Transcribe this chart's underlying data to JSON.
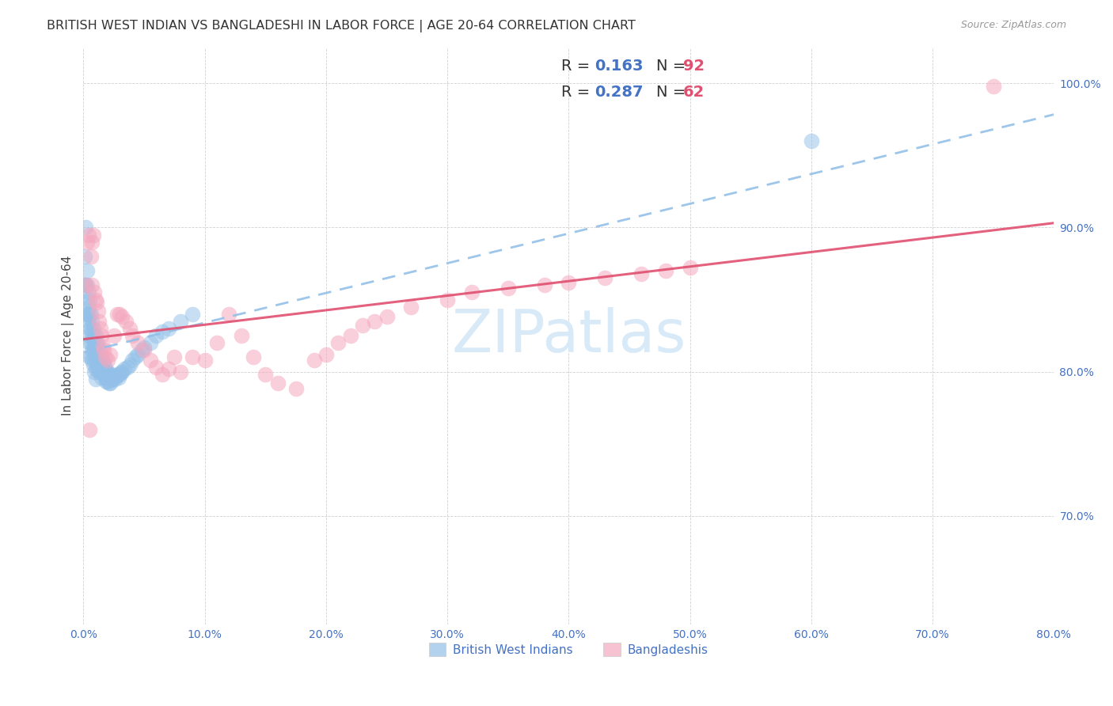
{
  "title": "BRITISH WEST INDIAN VS BANGLADESHI IN LABOR FORCE | AGE 20-64 CORRELATION CHART",
  "source": "Source: ZipAtlas.com",
  "ylabel": "In Labor Force | Age 20-64",
  "xlim": [
    0.0,
    0.8
  ],
  "ylim": [
    0.625,
    1.025
  ],
  "xticks": [
    0.0,
    0.1,
    0.2,
    0.3,
    0.4,
    0.5,
    0.6,
    0.7,
    0.8
  ],
  "yticks": [
    0.7,
    0.8,
    0.9,
    1.0
  ],
  "xticklabels": [
    "0.0%",
    "10.0%",
    "20.0%",
    "30.0%",
    "40.0%",
    "50.0%",
    "60.0%",
    "70.0%",
    "80.0%"
  ],
  "yticklabels": [
    "70.0%",
    "80.0%",
    "90.0%",
    "100.0%"
  ],
  "blue_color": "#92C0E8",
  "pink_color": "#F4A8BF",
  "trend_blue_color": "#92C0E8",
  "trend_pink_color": "#E05070",
  "watermark_color": "#D8EAF8",
  "blue_scatter_x": [
    0.001,
    0.001,
    0.002,
    0.002,
    0.002,
    0.003,
    0.003,
    0.003,
    0.003,
    0.004,
    0.004,
    0.004,
    0.004,
    0.005,
    0.005,
    0.005,
    0.005,
    0.005,
    0.006,
    0.006,
    0.006,
    0.006,
    0.007,
    0.007,
    0.007,
    0.007,
    0.008,
    0.008,
    0.008,
    0.008,
    0.009,
    0.009,
    0.009,
    0.009,
    0.01,
    0.01,
    0.01,
    0.01,
    0.01,
    0.011,
    0.011,
    0.011,
    0.012,
    0.012,
    0.012,
    0.013,
    0.013,
    0.013,
    0.014,
    0.014,
    0.015,
    0.015,
    0.015,
    0.016,
    0.016,
    0.017,
    0.017,
    0.018,
    0.018,
    0.019,
    0.019,
    0.02,
    0.02,
    0.021,
    0.021,
    0.022,
    0.022,
    0.023,
    0.024,
    0.025,
    0.026,
    0.027,
    0.028,
    0.029,
    0.03,
    0.031,
    0.032,
    0.034,
    0.036,
    0.038,
    0.04,
    0.043,
    0.045,
    0.048,
    0.05,
    0.055,
    0.06,
    0.065,
    0.07,
    0.08,
    0.09,
    0.6
  ],
  "blue_scatter_y": [
    0.88,
    0.86,
    0.9,
    0.86,
    0.84,
    0.87,
    0.86,
    0.85,
    0.84,
    0.855,
    0.845,
    0.835,
    0.825,
    0.85,
    0.84,
    0.83,
    0.82,
    0.81,
    0.84,
    0.83,
    0.82,
    0.81,
    0.835,
    0.825,
    0.815,
    0.808,
    0.83,
    0.822,
    0.815,
    0.805,
    0.825,
    0.818,
    0.81,
    0.8,
    0.825,
    0.818,
    0.81,
    0.802,
    0.795,
    0.82,
    0.812,
    0.805,
    0.818,
    0.81,
    0.802,
    0.815,
    0.808,
    0.8,
    0.812,
    0.805,
    0.81,
    0.803,
    0.796,
    0.808,
    0.8,
    0.806,
    0.798,
    0.803,
    0.796,
    0.8,
    0.793,
    0.8,
    0.793,
    0.798,
    0.792,
    0.798,
    0.792,
    0.795,
    0.795,
    0.797,
    0.795,
    0.797,
    0.798,
    0.796,
    0.798,
    0.8,
    0.8,
    0.802,
    0.803,
    0.805,
    0.808,
    0.81,
    0.812,
    0.815,
    0.817,
    0.82,
    0.825,
    0.828,
    0.83,
    0.835,
    0.84,
    0.96
  ],
  "pink_scatter_x": [
    0.002,
    0.003,
    0.004,
    0.005,
    0.006,
    0.007,
    0.007,
    0.008,
    0.009,
    0.01,
    0.011,
    0.012,
    0.013,
    0.014,
    0.015,
    0.016,
    0.017,
    0.018,
    0.02,
    0.022,
    0.025,
    0.028,
    0.03,
    0.032,
    0.035,
    0.038,
    0.04,
    0.045,
    0.05,
    0.055,
    0.06,
    0.065,
    0.07,
    0.075,
    0.08,
    0.09,
    0.1,
    0.11,
    0.12,
    0.13,
    0.14,
    0.15,
    0.16,
    0.175,
    0.19,
    0.2,
    0.21,
    0.22,
    0.23,
    0.24,
    0.25,
    0.27,
    0.3,
    0.32,
    0.35,
    0.38,
    0.4,
    0.43,
    0.46,
    0.48,
    0.5,
    0.75
  ],
  "pink_scatter_y": [
    0.86,
    0.89,
    0.895,
    0.76,
    0.88,
    0.89,
    0.86,
    0.895,
    0.855,
    0.85,
    0.848,
    0.842,
    0.835,
    0.83,
    0.825,
    0.818,
    0.815,
    0.81,
    0.808,
    0.812,
    0.825,
    0.84,
    0.84,
    0.838,
    0.835,
    0.83,
    0.825,
    0.82,
    0.815,
    0.808,
    0.803,
    0.798,
    0.802,
    0.81,
    0.8,
    0.81,
    0.808,
    0.82,
    0.84,
    0.825,
    0.81,
    0.798,
    0.792,
    0.788,
    0.808,
    0.812,
    0.82,
    0.825,
    0.832,
    0.835,
    0.838,
    0.845,
    0.85,
    0.855,
    0.858,
    0.86,
    0.862,
    0.865,
    0.868,
    0.87,
    0.872,
    0.998
  ]
}
